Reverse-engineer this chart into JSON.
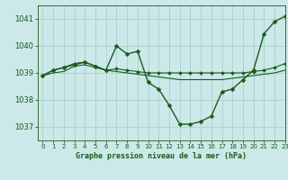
{
  "title": "Graphe pression niveau de la mer (hPa)",
  "bg_color": "#cce8e8",
  "grid_color": "#aacfcf",
  "line_color": "#1a5c1a",
  "marker_color": "#1a5c1a",
  "xlim": [
    -0.5,
    23
  ],
  "ylim": [
    1036.5,
    1041.5
  ],
  "yticks": [
    1037,
    1038,
    1039,
    1040,
    1041
  ],
  "xticks": [
    0,
    1,
    2,
    3,
    4,
    5,
    6,
    7,
    8,
    9,
    10,
    11,
    12,
    13,
    14,
    15,
    16,
    17,
    18,
    19,
    20,
    21,
    22,
    23
  ],
  "series": [
    {
      "y": [
        1038.9,
        1039.1,
        1039.2,
        1039.3,
        1039.4,
        1039.25,
        1039.1,
        1040.0,
        1039.7,
        1039.8,
        1038.65,
        1038.4,
        1037.8,
        1037.1,
        1037.1,
        1037.2,
        1037.4,
        1038.3,
        1038.4,
        1038.75,
        1039.1,
        1040.45,
        1040.9,
        1041.1
      ],
      "marker": true,
      "linewidth": 1.0,
      "markersize": 2.5
    },
    {
      "y": [
        1038.9,
        1039.1,
        1039.2,
        1039.35,
        1039.4,
        1039.25,
        1039.1,
        1039.15,
        1039.1,
        1039.05,
        1039.0,
        1039.0,
        1039.0,
        1039.0,
        1039.0,
        1039.0,
        1039.0,
        1039.0,
        1039.0,
        1039.0,
        1039.05,
        1039.1,
        1039.2,
        1039.35
      ],
      "marker": true,
      "linewidth": 0.8,
      "markersize": 2.0
    },
    {
      "y": [
        1038.9,
        1039.0,
        1039.05,
        1039.25,
        1039.3,
        1039.2,
        1039.1,
        1039.05,
        1039.0,
        1038.95,
        1038.9,
        1038.85,
        1038.8,
        1038.75,
        1038.75,
        1038.75,
        1038.75,
        1038.75,
        1038.8,
        1038.85,
        1038.9,
        1038.95,
        1039.0,
        1039.1
      ],
      "marker": false,
      "linewidth": 0.8,
      "markersize": 0
    }
  ]
}
